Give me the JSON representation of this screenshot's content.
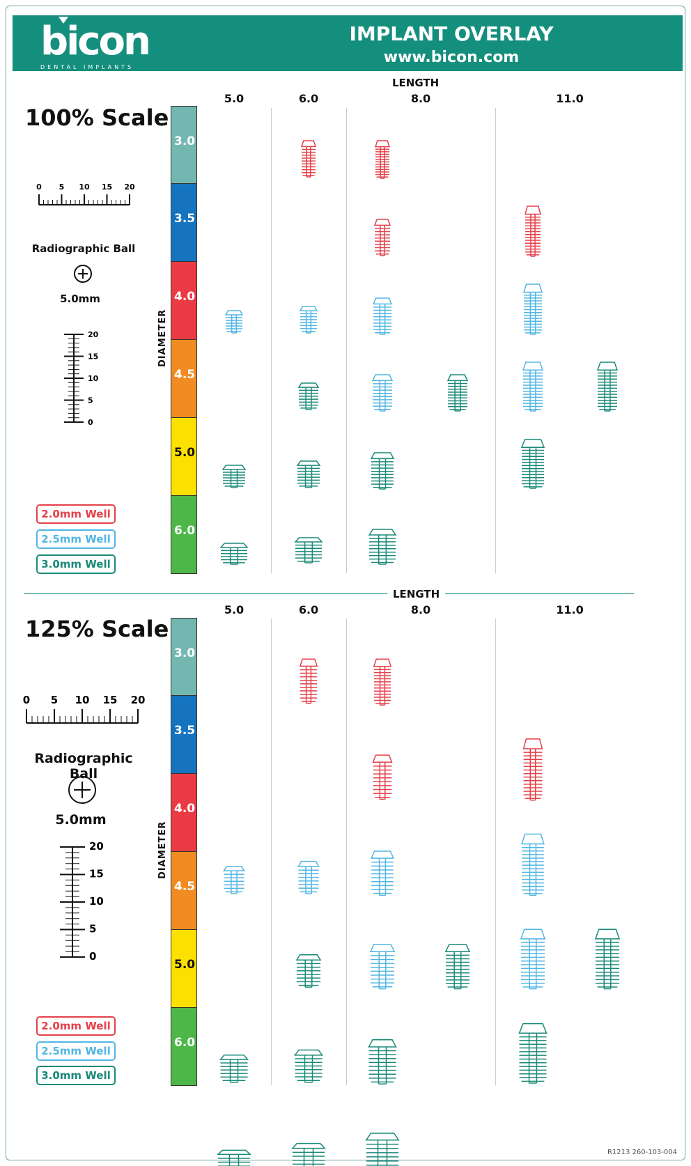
{
  "header": {
    "logo_text": "bicon",
    "logo_sub": "DENTAL IMPLANTS",
    "title": "IMPLANT OVERLAY",
    "url": "www.bicon.com"
  },
  "axes": {
    "length_label": "LENGTH",
    "diameter_label": "DIAMETER",
    "lengths": [
      "5.0",
      "6.0",
      "8.0",
      "11.0"
    ],
    "diameters": [
      "3.0",
      "3.5",
      "4.0",
      "4.5",
      "5.0",
      "6.0"
    ],
    "diameter_colors": [
      "#72b8b0",
      "#1674bf",
      "#ea3b45",
      "#f08c21",
      "#fce000",
      "#4db748"
    ]
  },
  "sections": [
    {
      "title": "100% Scale",
      "ruler_ticks": [
        "0",
        "5",
        "10",
        "15",
        "20"
      ],
      "ball_title": "Radiographic Ball",
      "ball_size": "5.0mm",
      "vertical_ruler_ticks": [
        "20",
        "15",
        "10",
        "5",
        "0"
      ]
    },
    {
      "title": "125% Scale",
      "ruler_ticks": [
        "0",
        "5",
        "10",
        "15",
        "20"
      ],
      "ball_title": "Radiographic Ball",
      "ball_size": "5.0mm",
      "vertical_ruler_ticks": [
        "20",
        "15",
        "10",
        "5",
        "0"
      ]
    }
  ],
  "wells": [
    {
      "label": "2.0mm Well",
      "color": "#e5404a"
    },
    {
      "label": "2.5mm Well",
      "color": "#52b6e3"
    },
    {
      "label": "3.0mm Well",
      "color": "#1a8a78"
    }
  ],
  "footer": "R1213    260-103-004"
}
